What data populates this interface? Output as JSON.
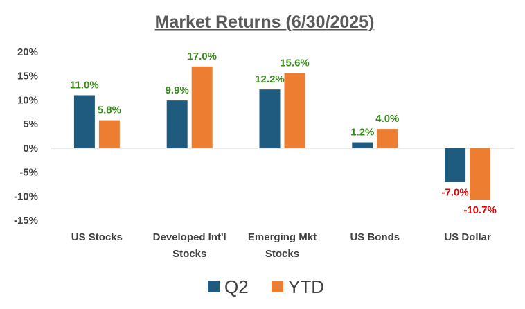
{
  "chart_data": {
    "type": "bar",
    "title": "Market Returns (6/30/2025)",
    "categories": [
      [
        "US Stocks"
      ],
      [
        "Developed Int'l",
        "Stocks"
      ],
      [
        "Emerging Mkt",
        "Stocks"
      ],
      [
        "US Bonds"
      ],
      [
        "US Dollar"
      ]
    ],
    "series": [
      {
        "name": "Q2",
        "color": "#1f5a7f",
        "values": [
          11.0,
          9.9,
          12.2,
          1.2,
          -7.0
        ]
      },
      {
        "name": "YTD",
        "color": "#ed7d31",
        "values": [
          5.8,
          17.0,
          15.6,
          4.0,
          -10.7
        ]
      }
    ],
    "data_labels": {
      "Q2": [
        "11.0%",
        "9.9%",
        "12.2%",
        "1.2%",
        "-7.0%"
      ],
      "YTD": [
        "5.8%",
        "17.0%",
        "15.6%",
        "4.0%",
        "-10.7%"
      ]
    },
    "positive_label_color": "#3a8a1e",
    "negative_label_color": "#e00000",
    "y_ticks": [
      20,
      15,
      10,
      5,
      0,
      -5,
      -10,
      -15
    ],
    "y_tick_labels": [
      "20%",
      "15%",
      "10%",
      "5%",
      "0%",
      "-5%",
      "-10%",
      "-15%"
    ],
    "ylim": [
      -15,
      20
    ],
    "grid": false,
    "legend_position": "bottom"
  }
}
